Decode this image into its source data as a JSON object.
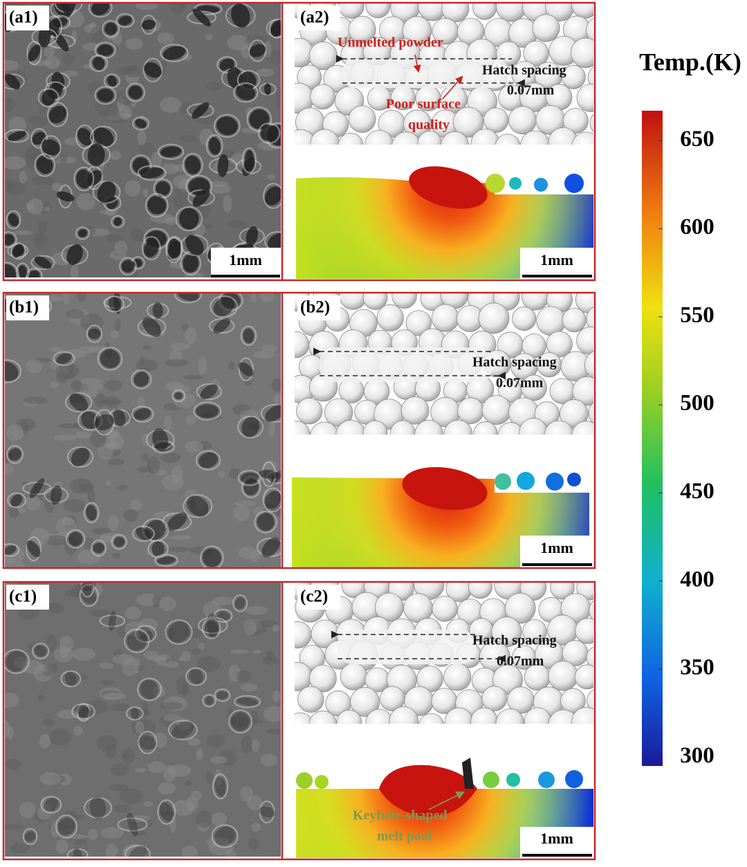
{
  "panels": [
    {
      "left_label": "(a1)",
      "right_label": "(a2)",
      "scale_left": "1mm",
      "scale_right": "1mm",
      "annotations": [
        "Unmelted powder",
        "Hatch spacing",
        "0.07mm",
        "Poor surface",
        "quality"
      ]
    },
    {
      "left_label": "(b1)",
      "right_label": "(b2)",
      "scale_right": "1mm",
      "annotations": [
        "Hatch spacing",
        "0.07mm"
      ]
    },
    {
      "left_label": "(c1)",
      "right_label": "(c2)",
      "scale_right": "1mm",
      "annotations": [
        "Hatch spacing",
        "0.07mm",
        "Keyhole-shaped",
        "melt pool"
      ]
    }
  ],
  "colorbar": {
    "title": "Temp.(K)",
    "range": [
      295,
      667
    ],
    "ticks": [
      300,
      350,
      400,
      450,
      500,
      550,
      600,
      650
    ]
  }
}
